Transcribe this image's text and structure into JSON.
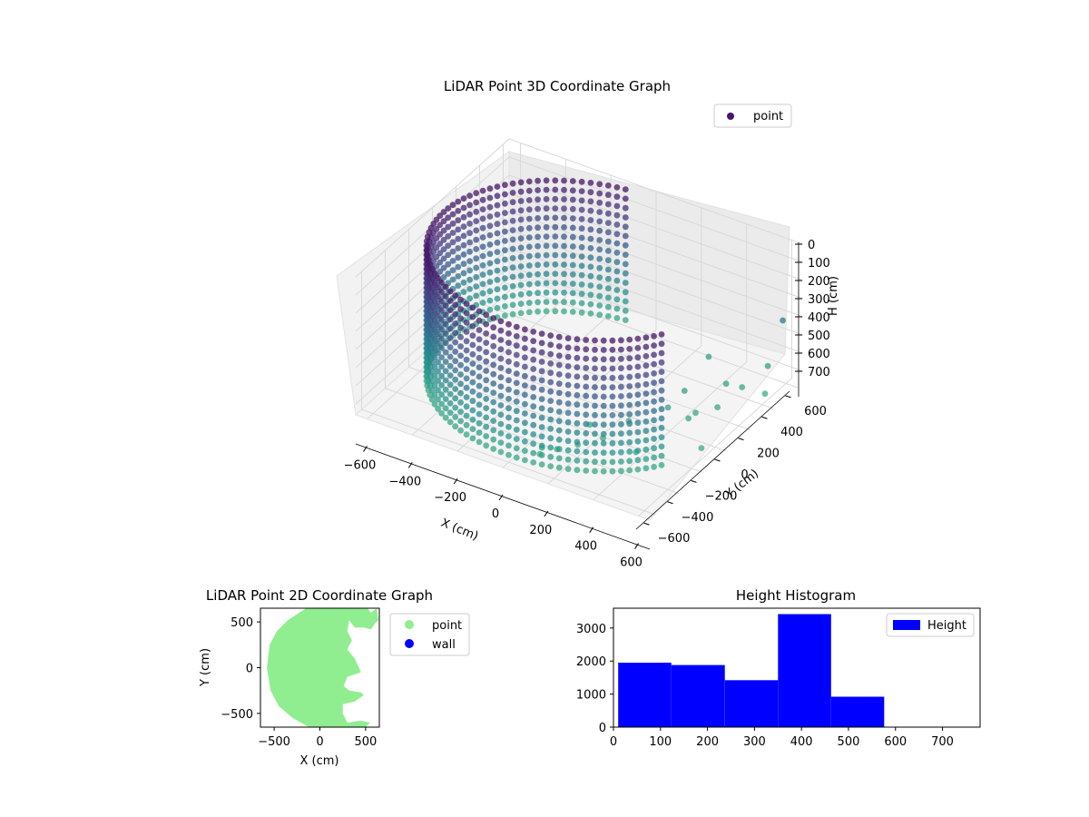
{
  "chart_data": [
    {
      "type": "scatter3d",
      "title": "LiDAR Point 3D Coordinate Graph",
      "xlabel": "X (cm)",
      "ylabel": "Y (cm)",
      "zlabel": "H (cm)",
      "xticks": [
        -600,
        -400,
        -200,
        0,
        200,
        400,
        600
      ],
      "yticks": [
        -600,
        -400,
        -200,
        0,
        200,
        400,
        600
      ],
      "zticks": [
        0,
        100,
        200,
        300,
        400,
        500,
        600,
        700
      ],
      "xlim": [
        -650,
        650
      ],
      "ylim": [
        -650,
        650
      ],
      "zlim": [
        760,
        0
      ],
      "z_inverted": true,
      "colormap": "viridis",
      "legend": [
        {
          "label": "point",
          "color": "#46166a"
        }
      ],
      "legend_position": "upper-right",
      "shape": "partial ring of vertical point columns, radius about 600 cm, heights 0-720 cm",
      "ring": {
        "radius": 600,
        "angle_start_deg": 100,
        "angle_end_deg": 330,
        "column_count": 70,
        "h_min": 0,
        "h_max": 720
      },
      "scatter_points": [
        {
          "x": 560,
          "y": 650,
          "h": 460
        },
        {
          "x": 520,
          "y": 600,
          "h": 700
        },
        {
          "x": 500,
          "y": 420,
          "h": 720
        },
        {
          "x": 450,
          "y": 380,
          "h": 700
        },
        {
          "x": 480,
          "y": 250,
          "h": 740
        },
        {
          "x": 430,
          "y": 160,
          "h": 740
        },
        {
          "x": 350,
          "y": 220,
          "h": 690
        },
        {
          "x": 300,
          "y": 520,
          "h": 700
        },
        {
          "x": 350,
          "y": 80,
          "h": 700
        },
        {
          "x": 260,
          "y": -80,
          "h": 720
        },
        {
          "x": 150,
          "y": -200,
          "h": 720
        },
        {
          "x": 240,
          "y": -260,
          "h": 720
        },
        {
          "x": 170,
          "y": -340,
          "h": 740
        },
        {
          "x": 120,
          "y": -420,
          "h": 740
        },
        {
          "x": 80,
          "y": -470,
          "h": 720
        },
        {
          "x": 70,
          "y": -470,
          "h": 760
        },
        {
          "x": 380,
          "y": -250,
          "h": 740
        },
        {
          "x": 560,
          "y": -40,
          "h": 760
        },
        {
          "x": 570,
          "y": 480,
          "h": 760
        },
        {
          "x": 440,
          "y": 80,
          "h": 720
        }
      ]
    },
    {
      "type": "scatter",
      "title": "LiDAR Point 2D Coordinate Graph",
      "xlabel": "X (cm)",
      "ylabel": "Y (cm)",
      "xticks": [
        -500,
        0,
        500
      ],
      "yticks": [
        -500,
        0,
        500
      ],
      "xlim": [
        -650,
        650
      ],
      "ylim": [
        -650,
        650
      ],
      "series": [
        {
          "name": "point",
          "color": "#90ee90"
        },
        {
          "name": "wall",
          "color": "#0000ff"
        }
      ],
      "legend_position": "outside-right",
      "region": {
        "outline": [
          [
            -150,
            650
          ],
          [
            520,
            650
          ],
          [
            560,
            600
          ],
          [
            620,
            650
          ],
          [
            640,
            520
          ],
          [
            600,
            480
          ],
          [
            560,
            420
          ],
          [
            480,
            440
          ],
          [
            380,
            440
          ],
          [
            320,
            520
          ],
          [
            300,
            400
          ],
          [
            350,
            300
          ],
          [
            300,
            200
          ],
          [
            380,
            100
          ],
          [
            450,
            -50
          ],
          [
            300,
            -100
          ],
          [
            260,
            -200
          ],
          [
            320,
            -250
          ],
          [
            450,
            -270
          ],
          [
            480,
            -300
          ],
          [
            380,
            -370
          ],
          [
            250,
            -400
          ],
          [
            250,
            -500
          ],
          [
            300,
            -600
          ],
          [
            450,
            -580
          ],
          [
            550,
            -600
          ],
          [
            500,
            -650
          ],
          [
            -120,
            -650
          ],
          [
            -300,
            -550
          ],
          [
            -450,
            -420
          ],
          [
            -540,
            -250
          ],
          [
            -580,
            0
          ],
          [
            -550,
            250
          ],
          [
            -470,
            400
          ],
          [
            -350,
            520
          ]
        ]
      }
    },
    {
      "type": "histogram",
      "title": "Height Histogram",
      "xlabel": "",
      "ylabel": "",
      "series_name": "Height",
      "color": "#0000ff",
      "bins": [
        {
          "start": 10,
          "end": 123,
          "count": 1950
        },
        {
          "start": 123,
          "end": 237,
          "count": 1880
        },
        {
          "start": 237,
          "end": 350,
          "count": 1420
        },
        {
          "start": 350,
          "end": 463,
          "count": 3420
        },
        {
          "start": 463,
          "end": 576,
          "count": 920
        }
      ],
      "xticks": [
        0,
        100,
        200,
        300,
        400,
        500,
        600,
        700
      ],
      "yticks": [
        0,
        1000,
        2000,
        3000
      ],
      "xlim": [
        0,
        780
      ],
      "ylim": [
        0,
        3600
      ],
      "legend_position": "upper-right"
    }
  ]
}
